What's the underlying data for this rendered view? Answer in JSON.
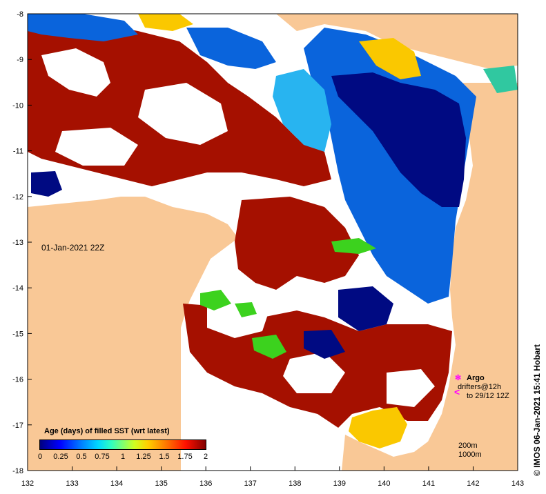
{
  "map": {
    "date_label": "01-Jan-2021 22Z",
    "x_ticks": [
      "132",
      "133",
      "134",
      "135",
      "136",
      "137",
      "138",
      "139",
      "140",
      "141",
      "142",
      "143"
    ],
    "y_ticks": [
      "-8",
      "-9",
      "-10",
      "-11",
      "-12",
      "-13",
      "-14",
      "-15",
      "-16",
      "-17",
      "-18"
    ],
    "colors": {
      "land": "#f9c896",
      "no_data": "#ffffff",
      "age_2": "#a51000",
      "age_0": "#000a82",
      "age_0_25": "#0a64dc",
      "age_0_5": "#28b4f0",
      "age_1": "#3cd21e",
      "age_1_5": "#fac800"
    }
  },
  "legend": {
    "title": "Age (days) of filled SST (wrt latest)",
    "ticks": [
      "0",
      "0.25",
      "0.5",
      "0.75",
      "1",
      "1.25",
      "1.5",
      "1.75",
      "2"
    ]
  },
  "argo": {
    "label": "Argo",
    "drifters_line1": "drifters@12h",
    "drifters_line2": "to 29/12 12Z"
  },
  "contours": {
    "line1": "200m",
    "line2": "1000m"
  },
  "credit": "© IMOS 06-Jan-2021 15:41 Hobart"
}
